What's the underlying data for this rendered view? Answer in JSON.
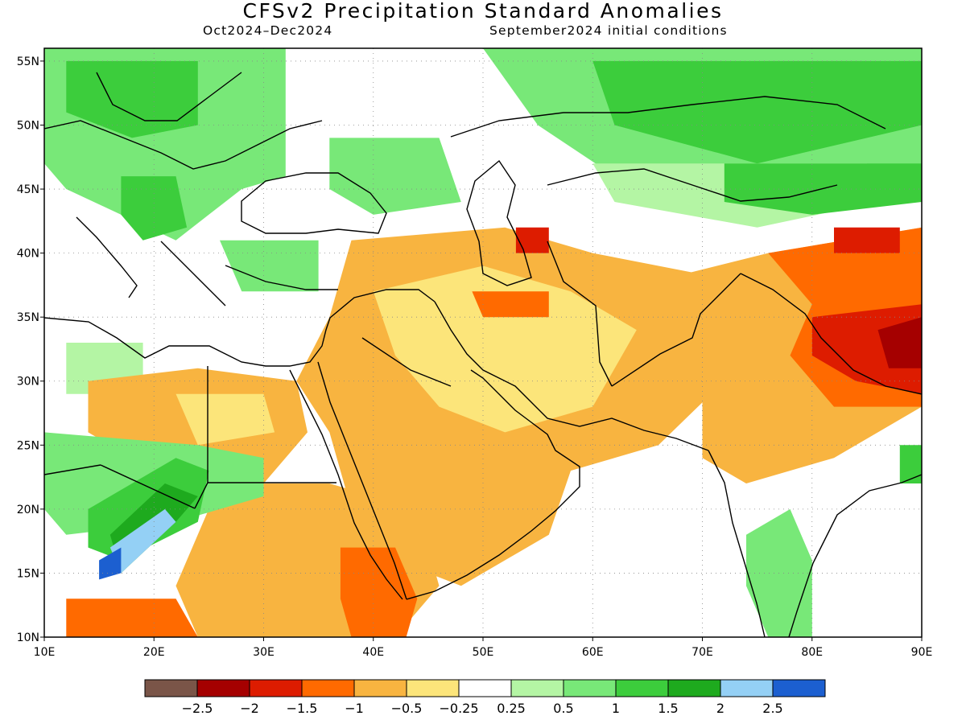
{
  "title": "CFSv2 Precipitation Standard Anomalies",
  "period": "Oct2024–Dec2024",
  "initial_conditions": "September2024 initial conditions",
  "map": {
    "lon_range": [
      10,
      90
    ],
    "lat_range": [
      10,
      56
    ],
    "lon_ticks": [
      {
        "value": 10,
        "label": "10E"
      },
      {
        "value": 20,
        "label": "20E"
      },
      {
        "value": 30,
        "label": "30E"
      },
      {
        "value": 40,
        "label": "40E"
      },
      {
        "value": 50,
        "label": "50E"
      },
      {
        "value": 60,
        "label": "60E"
      },
      {
        "value": 70,
        "label": "70E"
      },
      {
        "value": 80,
        "label": "80E"
      },
      {
        "value": 90,
        "label": "90E"
      }
    ],
    "lat_ticks": [
      {
        "value": 10,
        "label": "10N"
      },
      {
        "value": 15,
        "label": "15N"
      },
      {
        "value": 20,
        "label": "20N"
      },
      {
        "value": 25,
        "label": "25N"
      },
      {
        "value": 30,
        "label": "30N"
      },
      {
        "value": 35,
        "label": "35N"
      },
      {
        "value": 40,
        "label": "40N"
      },
      {
        "value": 45,
        "label": "45N"
      },
      {
        "value": 50,
        "label": "50N"
      },
      {
        "value": 55,
        "label": "55N"
      }
    ],
    "gridlines": "dotted"
  },
  "legend": {
    "bins": [
      {
        "color": "#7a5548"
      },
      {
        "color": "#a50000"
      },
      {
        "color": "#dd1c00"
      },
      {
        "color": "#ff6a00"
      },
      {
        "color": "#f8b440"
      },
      {
        "color": "#fce57a"
      },
      {
        "color": "#ffffff"
      },
      {
        "color": "#b4f5a4"
      },
      {
        "color": "#78e878"
      },
      {
        "color": "#3ccd3c"
      },
      {
        "color": "#1eaa1e"
      },
      {
        "color": "#94d0f5"
      },
      {
        "color": "#1c5fd0"
      }
    ],
    "labels": [
      "−2.5",
      "−2",
      "−1.5",
      "−1",
      "−0.5",
      "−0.25",
      "0.25",
      "0.5",
      "1",
      "1.5",
      "2",
      "2.5"
    ]
  },
  "regions": [
    {
      "name": "europe-wet",
      "color": "#78e878",
      "pts": [
        [
          10,
          56
        ],
        [
          32,
          56
        ],
        [
          32,
          46
        ],
        [
          28,
          45
        ],
        [
          22,
          41
        ],
        [
          12,
          45
        ],
        [
          10,
          47
        ]
      ]
    },
    {
      "name": "europe-wet-core",
      "color": "#3ccd3c",
      "pts": [
        [
          12,
          55
        ],
        [
          24,
          55
        ],
        [
          24,
          50
        ],
        [
          18,
          49
        ],
        [
          12,
          51
        ]
      ]
    },
    {
      "name": "balkan-wet",
      "color": "#3ccd3c",
      "pts": [
        [
          17,
          46
        ],
        [
          22,
          46
        ],
        [
          23,
          42
        ],
        [
          19,
          41
        ],
        [
          17,
          43
        ]
      ]
    },
    {
      "name": "russia-wet",
      "color": "#78e878",
      "pts": [
        [
          50,
          56
        ],
        [
          90,
          56
        ],
        [
          90,
          46
        ],
        [
          76,
          45
        ],
        [
          62,
          46
        ],
        [
          55,
          50
        ]
      ]
    },
    {
      "name": "russia-wet-core",
      "color": "#3ccd3c",
      "pts": [
        [
          60,
          55
        ],
        [
          90,
          55
        ],
        [
          90,
          50
        ],
        [
          75,
          47
        ],
        [
          62,
          50
        ]
      ]
    },
    {
      "name": "kaz-light-wet",
      "color": "#b4f5a4",
      "pts": [
        [
          60,
          47
        ],
        [
          85,
          47
        ],
        [
          86,
          44
        ],
        [
          75,
          42
        ],
        [
          62,
          44
        ]
      ]
    },
    {
      "name": "mongolia-wet",
      "color": "#3ccd3c",
      "pts": [
        [
          72,
          47
        ],
        [
          90,
          47
        ],
        [
          90,
          44
        ],
        [
          80,
          43
        ],
        [
          72,
          44
        ]
      ]
    },
    {
      "name": "caucasus-wet",
      "color": "#78e878",
      "pts": [
        [
          36,
          49
        ],
        [
          46,
          49
        ],
        [
          48,
          44
        ],
        [
          40,
          43
        ],
        [
          36,
          45
        ]
      ]
    },
    {
      "name": "aegean-wet",
      "color": "#78e878",
      "pts": [
        [
          26,
          41
        ],
        [
          35,
          41
        ],
        [
          35,
          37
        ],
        [
          28,
          37
        ]
      ]
    },
    {
      "name": "levant-light-wet",
      "color": "#b4f5a4",
      "pts": [
        [
          12,
          33
        ],
        [
          19,
          33
        ],
        [
          19,
          29
        ],
        [
          12,
          29
        ]
      ]
    },
    {
      "name": "middle-east-dry",
      "color": "#f8b440",
      "pts": [
        [
          38,
          41
        ],
        [
          52,
          42
        ],
        [
          60,
          40
        ],
        [
          72,
          38
        ],
        [
          72,
          30
        ],
        [
          66,
          25
        ],
        [
          58,
          23
        ],
        [
          56,
          18
        ],
        [
          48,
          14
        ],
        [
          42,
          16
        ],
        [
          38,
          20
        ],
        [
          36,
          26
        ],
        [
          33,
          30
        ],
        [
          36,
          35
        ]
      ]
    },
    {
      "name": "middle-east-dry-edge",
      "color": "#fce57a",
      "pts": [
        [
          40,
          37
        ],
        [
          50,
          39
        ],
        [
          58,
          37
        ],
        [
          64,
          34
        ],
        [
          60,
          28
        ],
        [
          52,
          26
        ],
        [
          46,
          28
        ],
        [
          42,
          32
        ]
      ]
    },
    {
      "name": "iran-dry-core",
      "color": "#ff6a00",
      "pts": [
        [
          49,
          37
        ],
        [
          56,
          37
        ],
        [
          56,
          35
        ],
        [
          50,
          35
        ]
      ]
    },
    {
      "name": "caspian-red",
      "color": "#dd1c00",
      "pts": [
        [
          53,
          42
        ],
        [
          56,
          42
        ],
        [
          56,
          40
        ],
        [
          53,
          40
        ]
      ]
    },
    {
      "name": "sahara-dry",
      "color": "#f8b440",
      "pts": [
        [
          14,
          30
        ],
        [
          24,
          31
        ],
        [
          33,
          30
        ],
        [
          34,
          26
        ],
        [
          30,
          22
        ],
        [
          24,
          22
        ],
        [
          18,
          24
        ],
        [
          14,
          26
        ]
      ]
    },
    {
      "name": "sahara-dry-edge",
      "color": "#fce57a",
      "pts": [
        [
          22,
          29
        ],
        [
          30,
          29
        ],
        [
          31,
          26
        ],
        [
          24,
          25
        ]
      ]
    },
    {
      "name": "sudan-dry",
      "color": "#f8b440",
      "pts": [
        [
          26,
          22
        ],
        [
          36,
          22
        ],
        [
          44,
          20
        ],
        [
          46,
          14
        ],
        [
          42,
          10
        ],
        [
          24,
          10
        ],
        [
          22,
          14
        ]
      ]
    },
    {
      "name": "ethiopia-dry",
      "color": "#ff6a00",
      "pts": [
        [
          37,
          17
        ],
        [
          42,
          17
        ],
        [
          44,
          13
        ],
        [
          43,
          10
        ],
        [
          38,
          10
        ],
        [
          37,
          13
        ]
      ]
    },
    {
      "name": "chad-dry",
      "color": "#ff6a00",
      "pts": [
        [
          12,
          13
        ],
        [
          22,
          13
        ],
        [
          24,
          10
        ],
        [
          12,
          10
        ]
      ]
    },
    {
      "name": "sahel-wet",
      "color": "#78e878",
      "pts": [
        [
          10,
          26
        ],
        [
          24,
          25
        ],
        [
          30,
          24
        ],
        [
          30,
          21
        ],
        [
          22,
          19
        ],
        [
          12,
          18
        ],
        [
          10,
          20
        ]
      ]
    },
    {
      "name": "sahel-wet-core",
      "color": "#3ccd3c",
      "pts": [
        [
          14,
          20
        ],
        [
          22,
          24
        ],
        [
          25,
          23
        ],
        [
          24,
          19
        ],
        [
          17,
          16
        ],
        [
          14,
          17
        ]
      ]
    },
    {
      "name": "sahel-very-wet",
      "color": "#1eaa1e",
      "pts": [
        [
          16,
          18
        ],
        [
          21,
          22
        ],
        [
          24,
          21
        ],
        [
          22,
          19
        ],
        [
          17,
          15
        ]
      ]
    },
    {
      "name": "sahel-light-blue",
      "color": "#94d0f5",
      "pts": [
        [
          16,
          17
        ],
        [
          21,
          20
        ],
        [
          22,
          19
        ],
        [
          17,
          15
        ]
      ]
    },
    {
      "name": "sahel-blue",
      "color": "#1c5fd0",
      "pts": [
        [
          15,
          16
        ],
        [
          17,
          17
        ],
        [
          17,
          15
        ],
        [
          15,
          14.5
        ]
      ]
    },
    {
      "name": "himalaya-dry",
      "color": "#f8b440",
      "pts": [
        [
          62,
          37
        ],
        [
          76,
          40
        ],
        [
          90,
          42
        ],
        [
          90,
          28
        ],
        [
          82,
          24
        ],
        [
          74,
          22
        ],
        [
          70,
          24
        ],
        [
          70,
          30
        ],
        [
          66,
          34
        ]
      ]
    },
    {
      "name": "himalaya-dry-strong",
      "color": "#ff6a00",
      "pts": [
        [
          76,
          40
        ],
        [
          90,
          42
        ],
        [
          90,
          28
        ],
        [
          82,
          28
        ],
        [
          78,
          32
        ],
        [
          80,
          36
        ]
      ]
    },
    {
      "name": "tibet-red",
      "color": "#dd1c00",
      "pts": [
        [
          80,
          35
        ],
        [
          90,
          36
        ],
        [
          90,
          29
        ],
        [
          84,
          30
        ],
        [
          80,
          32
        ]
      ]
    },
    {
      "name": "tibet-darkred",
      "color": "#a50000",
      "pts": [
        [
          86,
          34
        ],
        [
          90,
          35
        ],
        [
          90,
          31
        ],
        [
          87,
          31
        ]
      ]
    },
    {
      "name": "xinjiang-red",
      "color": "#dd1c00",
      "pts": [
        [
          82,
          42
        ],
        [
          88,
          42
        ],
        [
          88,
          40
        ],
        [
          82,
          40
        ]
      ]
    },
    {
      "name": "india-wet",
      "color": "#78e878",
      "pts": [
        [
          74,
          18
        ],
        [
          78,
          20
        ],
        [
          80,
          16
        ],
        [
          80,
          10
        ],
        [
          76,
          10
        ],
        [
          74,
          14
        ]
      ]
    },
    {
      "name": "bay-wet",
      "color": "#3ccd3c",
      "pts": [
        [
          88,
          25
        ],
        [
          90,
          25
        ],
        [
          90,
          22
        ],
        [
          88,
          22
        ]
      ]
    }
  ]
}
